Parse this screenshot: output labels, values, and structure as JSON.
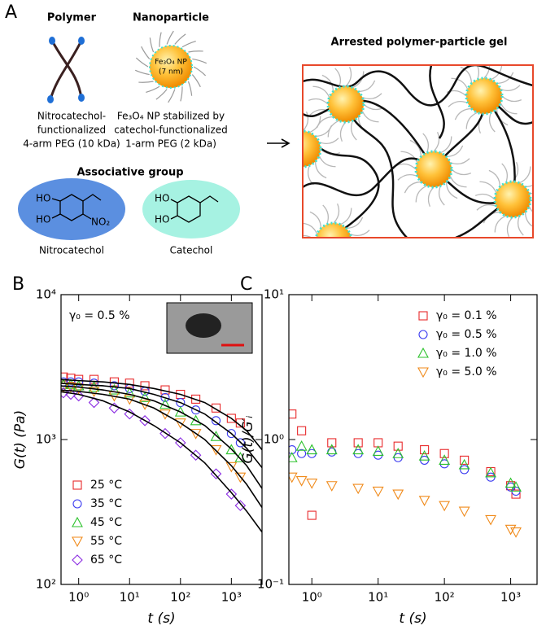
{
  "panel_a": {
    "label": "A",
    "polymer": {
      "title": "Polymer",
      "caption": [
        "Nitrocatechol-",
        "functionalized",
        "4-arm PEG (10 kDa)"
      ]
    },
    "nanoparticle": {
      "title": "Nanoparticle",
      "core": [
        "Fe₃O₄ NP",
        "(7 nm)"
      ],
      "caption": [
        "Fe₃O₄ NP stabilized by",
        "catechol-functionalized",
        "1-arm PEG (2 kDa)"
      ]
    },
    "associative_group": {
      "title": "Associative group",
      "nitrocatechol": {
        "name": "Nitrocatechol",
        "labels": [
          "HO",
          "HO",
          "NO₂"
        ]
      },
      "catechol": {
        "name": "Catechol",
        "labels": [
          "HO",
          "HO"
        ]
      }
    },
    "gel": {
      "title": "Arrested polymer-particle gel"
    }
  },
  "chart_data": [
    {
      "type": "scatter",
      "panel": "B",
      "xlabel": "t (s)",
      "ylabel": "G(t) (Pa)",
      "annotation": "γ₀ = 0.5 %",
      "xscale": "log",
      "yscale": "log",
      "xlim": [
        0.45,
        4000
      ],
      "ylim": [
        100,
        10000
      ],
      "xticks": [
        {
          "value": 1,
          "label": "10⁰"
        },
        {
          "value": 10,
          "label": "10¹"
        },
        {
          "value": 100,
          "label": "10²"
        },
        {
          "value": 1000,
          "label": "10³"
        }
      ],
      "yticks": [
        {
          "value": 100,
          "label": "10²"
        },
        {
          "value": 1000,
          "label": "10³"
        },
        {
          "value": 10000,
          "label": "10⁴"
        }
      ],
      "legend": "lower left",
      "x": [
        0.5,
        0.7,
        1,
        2,
        5,
        10,
        20,
        50,
        100,
        200,
        500,
        1000,
        1500
      ],
      "series": [
        {
          "name": "25 °C",
          "color": "#e8292b",
          "marker": "square",
          "values": [
            2700,
            2650,
            2600,
            2600,
            2500,
            2450,
            2350,
            2200,
            2050,
            1900,
            1650,
            1400,
            1300
          ]
        },
        {
          "name": "35 °C",
          "color": "#3a3af0",
          "marker": "circle",
          "values": [
            2500,
            2500,
            2500,
            2450,
            2350,
            2250,
            2150,
            1950,
            1800,
            1600,
            1350,
            1100,
            950
          ]
        },
        {
          "name": "45 °C",
          "color": "#2cc22c",
          "marker": "triangle-up",
          "values": [
            2400,
            2400,
            2350,
            2300,
            2200,
            2100,
            1950,
            1750,
            1550,
            1350,
            1050,
            850,
            750
          ]
        },
        {
          "name": "55 °C",
          "color": "#f08a1a",
          "marker": "triangle-down",
          "values": [
            2300,
            2300,
            2250,
            2150,
            2000,
            1900,
            1750,
            1500,
            1300,
            1100,
            850,
            650,
            550
          ]
        },
        {
          "name": "65 °C",
          "color": "#8a2be2",
          "marker": "diamond",
          "values": [
            2100,
            2050,
            2000,
            1800,
            1650,
            1500,
            1350,
            1100,
            950,
            780,
            580,
            420,
            350
          ]
        }
      ],
      "fit_x": [
        0.4,
        1,
        3,
        10,
        30,
        100,
        300,
        1000,
        2000,
        4000
      ],
      "fits": [
        {
          "color": "#000000",
          "values": [
            2600,
            2550,
            2500,
            2400,
            2250,
            2050,
            1800,
            1400,
            1150,
            850
          ]
        },
        {
          "color": "#000000",
          "values": [
            2450,
            2400,
            2350,
            2250,
            2050,
            1800,
            1500,
            1100,
            870,
            640
          ]
        },
        {
          "color": "#000000",
          "values": [
            2350,
            2300,
            2200,
            2050,
            1850,
            1550,
            1250,
            860,
            660,
            460
          ]
        },
        {
          "color": "#000000",
          "values": [
            2200,
            2150,
            2050,
            1900,
            1650,
            1300,
            1000,
            660,
            490,
            340
          ]
        },
        {
          "color": "#000000",
          "values": [
            2150,
            2050,
            1850,
            1550,
            1250,
            950,
            690,
            430,
            320,
            230
          ]
        }
      ]
    },
    {
      "type": "scatter",
      "panel": "C",
      "xlabel": "t (s)",
      "ylabel": "G(t)/G′ᵢ",
      "xscale": "log",
      "yscale": "log",
      "xlim": [
        0.45,
        2500
      ],
      "ylim": [
        0.1,
        10
      ],
      "xticks": [
        {
          "value": 1,
          "label": "10⁰"
        },
        {
          "value": 10,
          "label": "10¹"
        },
        {
          "value": 100,
          "label": "10²"
        },
        {
          "value": 1000,
          "label": "10³"
        }
      ],
      "yticks": [
        {
          "value": 0.1,
          "label": "10⁻¹"
        },
        {
          "value": 1,
          "label": "10⁰"
        },
        {
          "value": 10,
          "label": "10¹"
        }
      ],
      "legend": "upper right",
      "x": [
        0.5,
        0.7,
        1,
        2,
        5,
        10,
        20,
        50,
        100,
        200,
        500,
        1000,
        1200
      ],
      "series": [
        {
          "name": "γ₀ = 0.1 %",
          "color": "#e8292b",
          "marker": "square",
          "values": [
            1.5,
            1.15,
            0.3,
            0.95,
            0.95,
            0.95,
            0.9,
            0.85,
            0.8,
            0.72,
            0.6,
            0.48,
            0.42
          ]
        },
        {
          "name": "γ₀ = 0.5 %",
          "color": "#3a3af0",
          "marker": "circle",
          "values": [
            0.85,
            0.8,
            0.8,
            0.82,
            0.8,
            0.78,
            0.75,
            0.72,
            0.68,
            0.62,
            0.55,
            0.47,
            0.44
          ]
        },
        {
          "name": "γ₀ = 1.0 %",
          "color": "#2cc22c",
          "marker": "triangle-up",
          "values": [
            0.75,
            0.9,
            0.85,
            0.85,
            0.85,
            0.83,
            0.8,
            0.77,
            0.72,
            0.67,
            0.59,
            0.5,
            0.47
          ]
        },
        {
          "name": "γ₀ = 5.0 %",
          "color": "#f08a1a",
          "marker": "triangle-down",
          "values": [
            0.55,
            0.52,
            0.5,
            0.48,
            0.46,
            0.44,
            0.42,
            0.38,
            0.35,
            0.32,
            0.28,
            0.24,
            0.23
          ]
        }
      ]
    }
  ]
}
